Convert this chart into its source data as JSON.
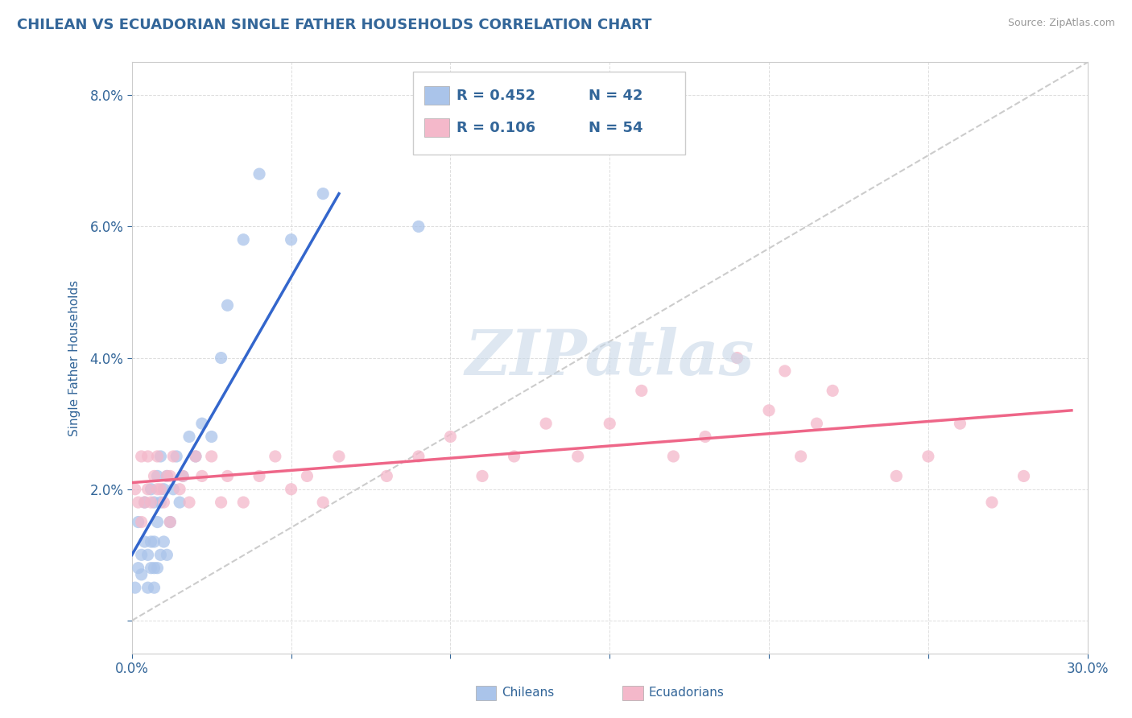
{
  "title": "CHILEAN VS ECUADORIAN SINGLE FATHER HOUSEHOLDS CORRELATION CHART",
  "source": "Source: ZipAtlas.com",
  "ylabel": "Single Father Households",
  "xlim": [
    0.0,
    0.3
  ],
  "ylim": [
    -0.005,
    0.085
  ],
  "xticks": [
    0.0,
    0.05,
    0.1,
    0.15,
    0.2,
    0.25,
    0.3
  ],
  "xticklabels": [
    "0.0%",
    "",
    "",
    "",
    "",
    "",
    "30.0%"
  ],
  "yticks": [
    0.0,
    0.02,
    0.04,
    0.06,
    0.08
  ],
  "yticklabels": [
    "",
    "2.0%",
    "4.0%",
    "6.0%",
    "8.0%"
  ],
  "legend_r": [
    "R = 0.452",
    "R = 0.106"
  ],
  "legend_n": [
    "N = 42",
    "N = 54"
  ],
  "legend_labels": [
    "Chileans",
    "Ecuadorians"
  ],
  "chilean_color": "#aac4ea",
  "ecuadorian_color": "#f4b8ca",
  "trendline_chilean_color": "#3366cc",
  "trendline_ecuadorian_color": "#ee6688",
  "trendline_ref_color": "#cccccc",
  "background_color": "#ffffff",
  "grid_color": "#dddddd",
  "title_color": "#336699",
  "axis_color": "#336699",
  "watermark": "ZIPatlas",
  "watermark_color": "#c8d8e8",
  "chilean_x": [
    0.001,
    0.002,
    0.002,
    0.003,
    0.003,
    0.004,
    0.004,
    0.005,
    0.005,
    0.006,
    0.006,
    0.006,
    0.007,
    0.007,
    0.007,
    0.007,
    0.008,
    0.008,
    0.008,
    0.009,
    0.009,
    0.009,
    0.01,
    0.01,
    0.011,
    0.011,
    0.012,
    0.013,
    0.014,
    0.015,
    0.016,
    0.018,
    0.02,
    0.022,
    0.025,
    0.028,
    0.03,
    0.035,
    0.04,
    0.05,
    0.06,
    0.09
  ],
  "chilean_y": [
    0.005,
    0.008,
    0.015,
    0.007,
    0.01,
    0.012,
    0.018,
    0.005,
    0.01,
    0.008,
    0.012,
    0.02,
    0.005,
    0.008,
    0.012,
    0.018,
    0.008,
    0.015,
    0.022,
    0.01,
    0.018,
    0.025,
    0.012,
    0.02,
    0.01,
    0.022,
    0.015,
    0.02,
    0.025,
    0.018,
    0.022,
    0.028,
    0.025,
    0.03,
    0.028,
    0.04,
    0.048,
    0.058,
    0.068,
    0.058,
    0.065,
    0.06
  ],
  "ecuadorian_x": [
    0.001,
    0.002,
    0.003,
    0.003,
    0.004,
    0.005,
    0.005,
    0.006,
    0.007,
    0.008,
    0.008,
    0.009,
    0.01,
    0.011,
    0.012,
    0.012,
    0.013,
    0.015,
    0.016,
    0.018,
    0.02,
    0.022,
    0.025,
    0.028,
    0.03,
    0.035,
    0.04,
    0.045,
    0.05,
    0.055,
    0.06,
    0.065,
    0.08,
    0.09,
    0.1,
    0.11,
    0.12,
    0.13,
    0.14,
    0.15,
    0.16,
    0.17,
    0.18,
    0.2,
    0.21,
    0.22,
    0.24,
    0.26,
    0.27,
    0.28,
    0.19,
    0.205,
    0.215,
    0.25
  ],
  "ecuadorian_y": [
    0.02,
    0.018,
    0.015,
    0.025,
    0.018,
    0.02,
    0.025,
    0.018,
    0.022,
    0.02,
    0.025,
    0.02,
    0.018,
    0.022,
    0.015,
    0.022,
    0.025,
    0.02,
    0.022,
    0.018,
    0.025,
    0.022,
    0.025,
    0.018,
    0.022,
    0.018,
    0.022,
    0.025,
    0.02,
    0.022,
    0.018,
    0.025,
    0.022,
    0.025,
    0.028,
    0.022,
    0.025,
    0.03,
    0.025,
    0.03,
    0.035,
    0.025,
    0.028,
    0.032,
    0.025,
    0.035,
    0.022,
    0.03,
    0.018,
    0.022,
    0.04,
    0.038,
    0.03,
    0.025
  ],
  "trendline_chilean_x_start": 0.0,
  "trendline_chilean_y_start": 0.01,
  "trendline_chilean_x_end": 0.065,
  "trendline_chilean_y_end": 0.065,
  "trendline_ecuadorian_x_start": 0.0,
  "trendline_ecuadorian_y_start": 0.021,
  "trendline_ecuadorian_x_end": 0.295,
  "trendline_ecuadorian_y_end": 0.032
}
